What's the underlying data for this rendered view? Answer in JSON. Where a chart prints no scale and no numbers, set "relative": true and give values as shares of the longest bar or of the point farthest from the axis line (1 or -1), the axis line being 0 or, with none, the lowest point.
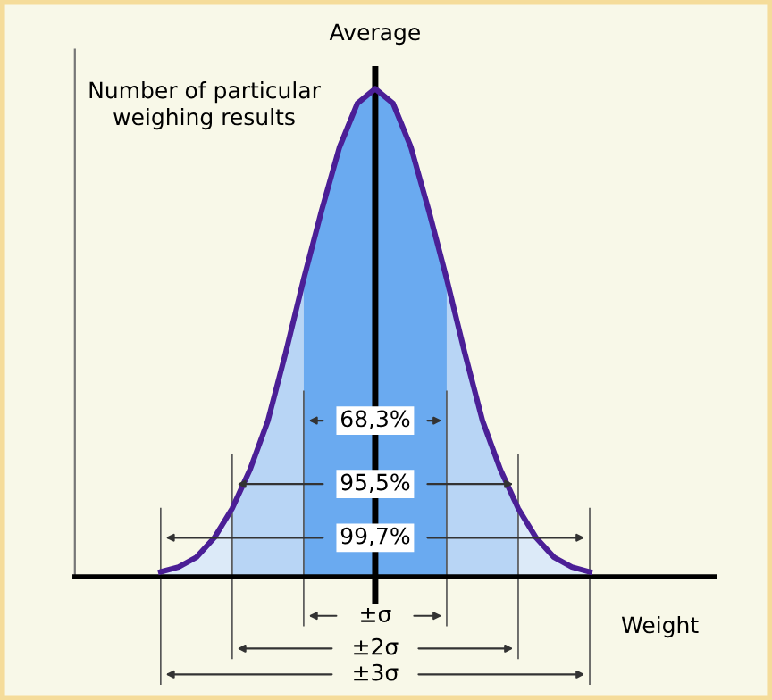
{
  "chart_data": {
    "type": "area",
    "relative": true,
    "xlabel": "Weight",
    "ylabel": "Number of particular\nweighing results",
    "categories": [
      null,
      null,
      null,
      null,
      null,
      null,
      null,
      null,
      null,
      null,
      null,
      null,
      null,
      null,
      null,
      null,
      null,
      null,
      null,
      null,
      null,
      null,
      null,
      null,
      null
    ],
    "series": [
      {
        "type": "line",
        "color": "#4b1f96",
        "values": [
          0.01,
          0.02,
          0.04,
          0.08,
          0.14,
          0.22,
          0.32,
          0.46,
          0.61,
          0.75,
          0.88,
          0.97,
          1,
          0.97,
          0.88,
          0.75,
          0.61,
          0.46,
          0.32,
          0.22,
          0.14,
          0.08,
          0.04,
          0.02,
          0.01
        ]
      },
      {
        "name": "99,7%",
        "color": "#dceaf8",
        "values": [
          0.01,
          0.02,
          0.04,
          0.08,
          0.14,
          null,
          null,
          null,
          null,
          null,
          null,
          null,
          null,
          null,
          null,
          null,
          null,
          null,
          null,
          null,
          0.14,
          0.08,
          0.04,
          0.02,
          0.01
        ]
      },
      {
        "name": "95,5%",
        "color": "#b8d5f5",
        "values": [
          null,
          null,
          null,
          null,
          0.14,
          0.22,
          0.32,
          0.46,
          0.61,
          null,
          null,
          null,
          null,
          null,
          null,
          null,
          0.61,
          0.46,
          0.32,
          0.22,
          0.14,
          null,
          null,
          null,
          null
        ]
      },
      {
        "name": "68,3%",
        "color": "#6aaaf0",
        "values": [
          null,
          null,
          null,
          null,
          null,
          null,
          null,
          null,
          0.61,
          0.75,
          0.88,
          0.97,
          1,
          0.97,
          0.88,
          0.75,
          0.61,
          null,
          null,
          null,
          null,
          null,
          null,
          null,
          null
        ]
      }
    ],
    "title": "Average",
    "annotations": [
      "±3σ",
      "±2σ",
      "±σ"
    ],
    "tick_labels": false
  }
}
